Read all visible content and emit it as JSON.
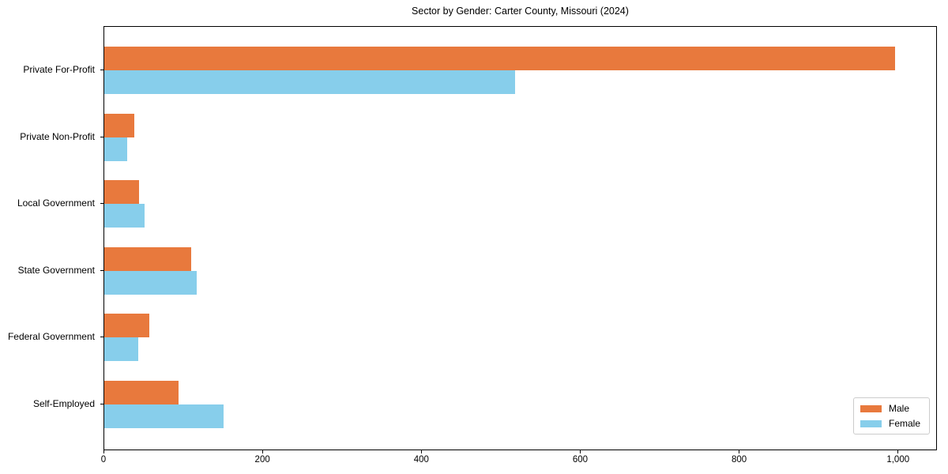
{
  "title": "Sector by Gender: Carter County, Missouri (2024)",
  "colors": {
    "male": "#E8793D",
    "female": "#87CEEB",
    "axis": "#000000",
    "legend_border": "#CCCCCC",
    "background": "#FFFFFF"
  },
  "chart_data": {
    "type": "bar",
    "orientation": "horizontal",
    "title": "Sector by Gender: Carter County, Missouri (2024)",
    "categories": [
      "Private For-Profit",
      "Private Non-Profit",
      "Local Government",
      "State Government",
      "Federal Government",
      "Self-Employed"
    ],
    "series": [
      {
        "name": "Male",
        "color": "#E8793D",
        "values": [
          997,
          38,
          44,
          110,
          57,
          94
        ]
      },
      {
        "name": "Female",
        "color": "#87CEEB",
        "values": [
          518,
          29,
          51,
          117,
          43,
          150
        ]
      }
    ],
    "xlabel": "",
    "ylabel": "",
    "xlim": [
      0,
      1049
    ],
    "xticks": [
      0,
      200,
      400,
      600,
      800,
      1000
    ],
    "xtick_labels": [
      "0",
      "200",
      "400",
      "600",
      "800",
      "1,000"
    ],
    "grid": false,
    "legend_position": "lower right"
  }
}
